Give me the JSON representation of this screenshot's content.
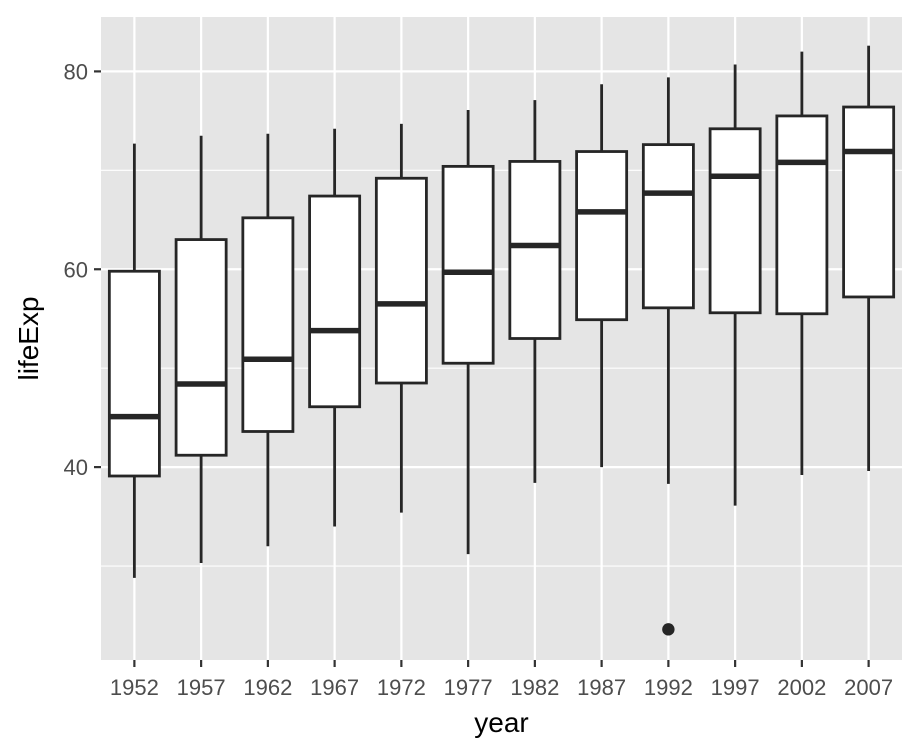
{
  "chart_data": {
    "type": "boxplot",
    "xlabel": "year",
    "ylabel": "lifeExp",
    "ylim": [
      20.5,
      85.5
    ],
    "y_ticks": [
      40,
      60,
      80
    ],
    "y_minor_ticks": [
      30,
      50,
      70
    ],
    "grid": true,
    "panel_background": "#e5e5e5",
    "grid_color": "#ffffff",
    "box_fill": "#ffffff",
    "box_stroke": "#262626",
    "categories": [
      "1952",
      "1957",
      "1962",
      "1967",
      "1972",
      "1977",
      "1982",
      "1987",
      "1992",
      "1997",
      "2002",
      "2007"
    ],
    "boxes": [
      {
        "category": "1952",
        "whisker_low": 28.8,
        "q1": 39.1,
        "median": 45.1,
        "q3": 59.8,
        "whisker_high": 72.7,
        "outliers": []
      },
      {
        "category": "1957",
        "whisker_low": 30.3,
        "q1": 41.2,
        "median": 48.4,
        "q3": 63.0,
        "whisker_high": 73.5,
        "outliers": []
      },
      {
        "category": "1962",
        "whisker_low": 32.0,
        "q1": 43.6,
        "median": 50.9,
        "q3": 65.2,
        "whisker_high": 73.7,
        "outliers": []
      },
      {
        "category": "1967",
        "whisker_low": 34.0,
        "q1": 46.1,
        "median": 53.8,
        "q3": 67.4,
        "whisker_high": 74.2,
        "outliers": []
      },
      {
        "category": "1972",
        "whisker_low": 35.4,
        "q1": 48.5,
        "median": 56.5,
        "q3": 69.2,
        "whisker_high": 74.7,
        "outliers": []
      },
      {
        "category": "1977",
        "whisker_low": 31.2,
        "q1": 50.5,
        "median": 59.7,
        "q3": 70.4,
        "whisker_high": 76.1,
        "outliers": []
      },
      {
        "category": "1982",
        "whisker_low": 38.4,
        "q1": 53.0,
        "median": 62.4,
        "q3": 70.9,
        "whisker_high": 77.1,
        "outliers": []
      },
      {
        "category": "1987",
        "whisker_low": 40.0,
        "q1": 54.9,
        "median": 65.8,
        "q3": 71.9,
        "whisker_high": 78.7,
        "outliers": []
      },
      {
        "category": "1992",
        "whisker_low": 38.3,
        "q1": 56.1,
        "median": 67.7,
        "q3": 72.6,
        "whisker_high": 79.4,
        "outliers": [
          23.6
        ]
      },
      {
        "category": "1997",
        "whisker_low": 36.1,
        "q1": 55.6,
        "median": 69.4,
        "q3": 74.2,
        "whisker_high": 80.7,
        "outliers": []
      },
      {
        "category": "2002",
        "whisker_low": 39.2,
        "q1": 55.5,
        "median": 70.8,
        "q3": 75.5,
        "whisker_high": 82.0,
        "outliers": []
      },
      {
        "category": "2007",
        "whisker_low": 39.6,
        "q1": 57.2,
        "median": 71.9,
        "q3": 76.4,
        "whisker_high": 82.6,
        "outliers": []
      }
    ]
  }
}
